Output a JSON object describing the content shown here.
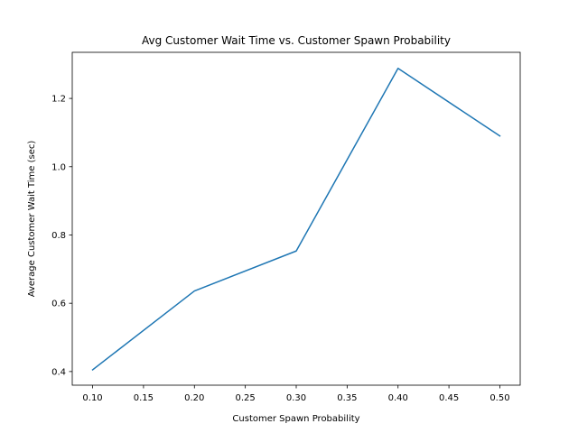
{
  "chart_data": {
    "type": "line",
    "title": "Avg Customer Wait Time vs. Customer Spawn Probability",
    "xlabel": "Customer Spawn Probability",
    "ylabel": "Average Customer Wait Time (sec)",
    "x": [
      0.1,
      0.2,
      0.3,
      0.4,
      0.5
    ],
    "series": [
      {
        "values": [
          0.405,
          0.636,
          0.753,
          1.288,
          1.09
        ],
        "color": "#1f77b4"
      }
    ],
    "xlim": [
      0.08,
      0.52
    ],
    "ylim": [
      0.36,
      1.335
    ],
    "xticks": [
      0.1,
      0.15,
      0.2,
      0.25,
      0.3,
      0.35,
      0.4,
      0.45,
      0.5
    ],
    "xtick_labels": [
      "0.10",
      "0.15",
      "0.20",
      "0.25",
      "0.30",
      "0.35",
      "0.40",
      "0.45",
      "0.50"
    ],
    "yticks": [
      0.4,
      0.6,
      0.8,
      1.0,
      1.2
    ],
    "ytick_labels": [
      "0.4",
      "0.6",
      "0.8",
      "1.0",
      "1.2"
    ],
    "grid": false,
    "legend": "none"
  }
}
